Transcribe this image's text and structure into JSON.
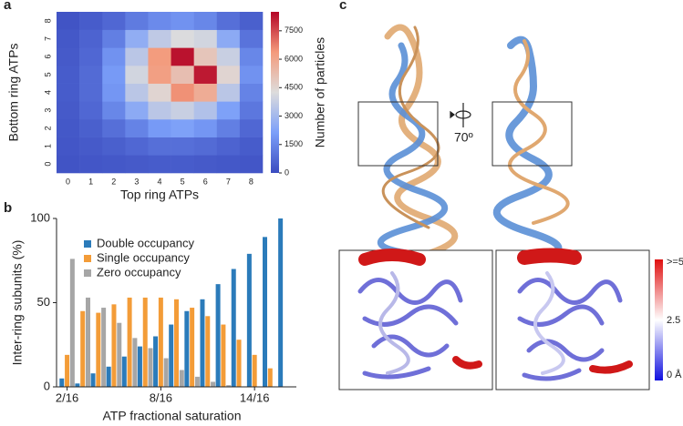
{
  "panel_labels": [
    "a",
    "b",
    "c"
  ],
  "chart_data": [
    {
      "type": "heatmap",
      "x_label": "Top ring ATPs",
      "y_label": "Bottom ring ATPs",
      "x": [
        0,
        1,
        2,
        3,
        4,
        5,
        6,
        7,
        8
      ],
      "y": [
        0,
        1,
        2,
        3,
        4,
        5,
        6,
        7,
        8
      ],
      "values": [
        [
          200,
          250,
          300,
          350,
          400,
          400,
          350,
          300,
          250
        ],
        [
          250,
          350,
          500,
          700,
          900,
          900,
          800,
          600,
          400
        ],
        [
          300,
          500,
          900,
          1400,
          2000,
          2200,
          1900,
          1300,
          700
        ],
        [
          350,
          700,
          1500,
          2500,
          3500,
          3800,
          3300,
          2200,
          1100
        ],
        [
          400,
          800,
          1900,
          3500,
          4500,
          6500,
          5800,
          3500,
          1400
        ],
        [
          400,
          800,
          2000,
          4000,
          6200,
          5200,
          8200,
          4500,
          1800
        ],
        [
          350,
          700,
          1800,
          3500,
          6300,
          8300,
          5000,
          3800,
          1500
        ],
        [
          300,
          600,
          1300,
          2600,
          3600,
          4200,
          4000,
          2500,
          1000
        ],
        [
          200,
          400,
          700,
          1200,
          1600,
          1800,
          1500,
          900,
          500
        ]
      ],
      "colormap": [
        "#3b4cc0",
        "#7b9ff9",
        "#dddcdc",
        "#f49a7b",
        "#b40426"
      ],
      "colorbar": {
        "label": "Number of particles",
        "lim": [
          0,
          8500
        ],
        "ticks": [
          0,
          1500,
          3000,
          4500,
          6000,
          7500
        ]
      }
    },
    {
      "type": "bar",
      "x_label": "ATP fractional saturation",
      "y_label": "Inter-ring subunits (%)",
      "categories": [
        "2/16",
        null,
        null,
        null,
        null,
        null,
        "8/16",
        null,
        null,
        null,
        null,
        null,
        "14/16",
        null,
        null
      ],
      "series": [
        {
          "name": "Double occupancy",
          "color": "#2b7bba",
          "values": [
            5,
            2,
            8,
            12,
            18,
            24,
            30,
            37,
            45,
            52,
            61,
            70,
            79,
            89,
            100
          ]
        },
        {
          "name": "Single occupancy",
          "color": "#f39c38",
          "values": [
            19,
            45,
            44,
            49,
            53,
            53,
            53,
            52,
            47,
            42,
            37,
            28,
            19,
            11,
            0
          ]
        },
        {
          "name": "Zero occupancy",
          "color": "#a6a6a6",
          "values": [
            76,
            53,
            47,
            38,
            29,
            23,
            17,
            10,
            6,
            3,
            1,
            0,
            0,
            0,
            0
          ]
        }
      ],
      "ylim": [
        0,
        100
      ],
      "yticks": [
        0,
        50,
        100
      ],
      "legend": "upper left"
    }
  ],
  "panel_c": {
    "rotation_label": "70º",
    "colorbar_labels": [
      ">=5 Å",
      "2.5 Å",
      "0 Å"
    ]
  }
}
